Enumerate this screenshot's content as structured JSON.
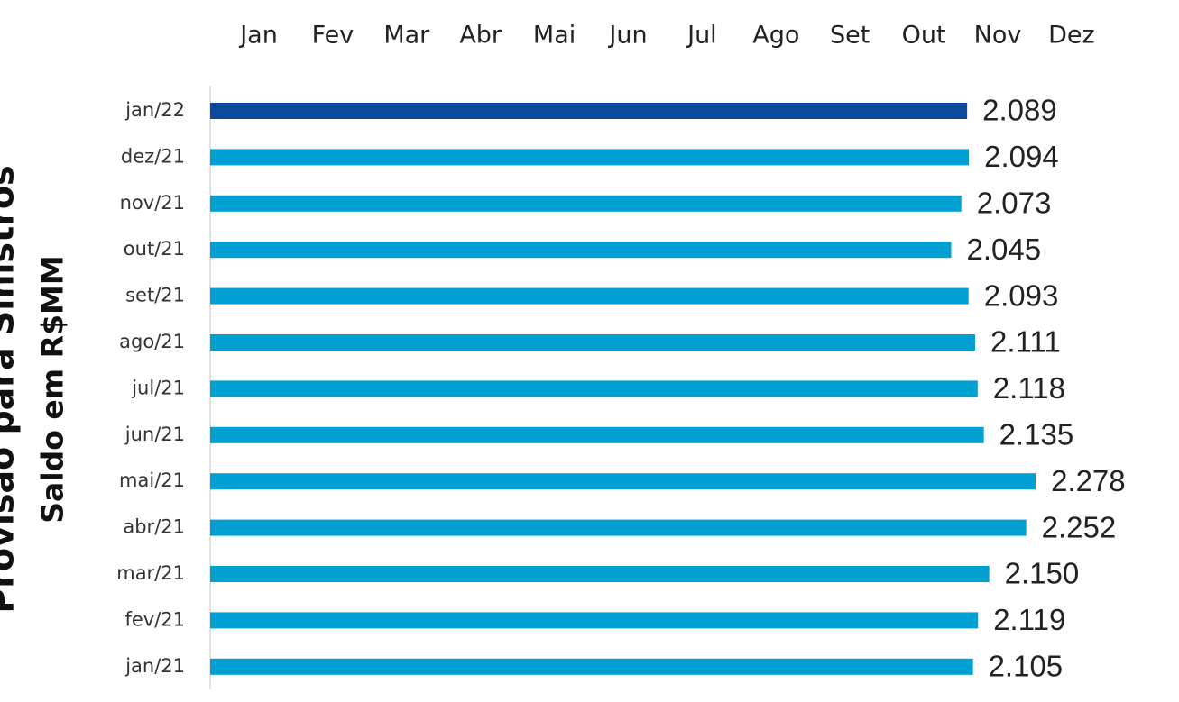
{
  "chart_data": {
    "type": "bar",
    "orientation": "horizontal",
    "top_labels": [
      "Jan",
      "Fev",
      "Mar",
      "Abr",
      "Mai",
      "Jun",
      "Jul",
      "Ago",
      "Set",
      "Out",
      "Nov",
      "Dez"
    ],
    "y_label": "Saldo em R$MM",
    "y_label_outer": "Provisão para Sinistros",
    "categories": [
      "jan/22",
      "dez/21",
      "nov/21",
      "out/21",
      "set/21",
      "ago/21",
      "jul/21",
      "jun/21",
      "mai/21",
      "abr/21",
      "mar/21",
      "fev/21",
      "jan/21"
    ],
    "values": [
      2089,
      2094,
      2073,
      2045,
      2093,
      2111,
      2118,
      2135,
      2278,
      2252,
      2150,
      2119,
      2105
    ],
    "value_labels": [
      "2.089",
      "2.094",
      "2.073",
      "2.045",
      "2.093",
      "2.111",
      "2.118",
      "2.135",
      "2.278",
      "2.252",
      "2.150",
      "2.119",
      "2.105"
    ],
    "colors": [
      "#0b4a9b",
      "#00a0d2",
      "#00a0d2",
      "#00a0d2",
      "#00a0d2",
      "#00a0d2",
      "#00a0d2",
      "#00a0d2",
      "#00a0d2",
      "#00a0d2",
      "#00a0d2",
      "#00a0d2",
      "#00a0d2"
    ]
  }
}
